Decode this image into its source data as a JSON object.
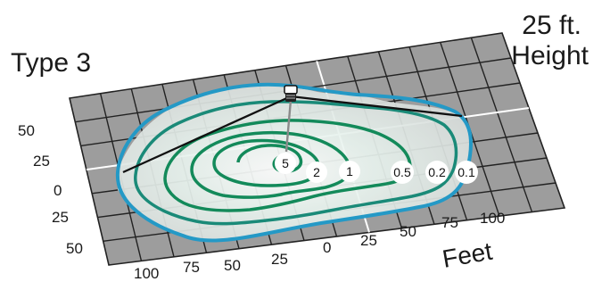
{
  "diagram": {
    "type_label": "Type 3",
    "height_label": [
      "25 ft.",
      "Height"
    ],
    "axis_unit_label": "Feet",
    "left_axis_ticks": [
      "50",
      "25",
      "0",
      "25",
      "50"
    ],
    "bottom_axis_ticks": [
      "100",
      "75",
      "50",
      "25",
      "0",
      "25",
      "50",
      "75",
      "100"
    ],
    "isolines": [
      {
        "value": "5",
        "color": "#138a5a"
      },
      {
        "value": "2",
        "color": "#138a5a"
      },
      {
        "value": "1",
        "color": "#138a5a"
      },
      {
        "value": "0.5",
        "color": "#138a5a"
      },
      {
        "value": "0.2",
        "color": "#1a8a78"
      },
      {
        "value": "0.1",
        "color": "#2499c6"
      }
    ],
    "colors": {
      "grid_fill": "#9d9d9d",
      "grid_line": "#222222",
      "light_pool": "#eeeeee",
      "axis_zero_line": "#ffffff"
    },
    "fixture_icon": "luminaire-icon"
  }
}
